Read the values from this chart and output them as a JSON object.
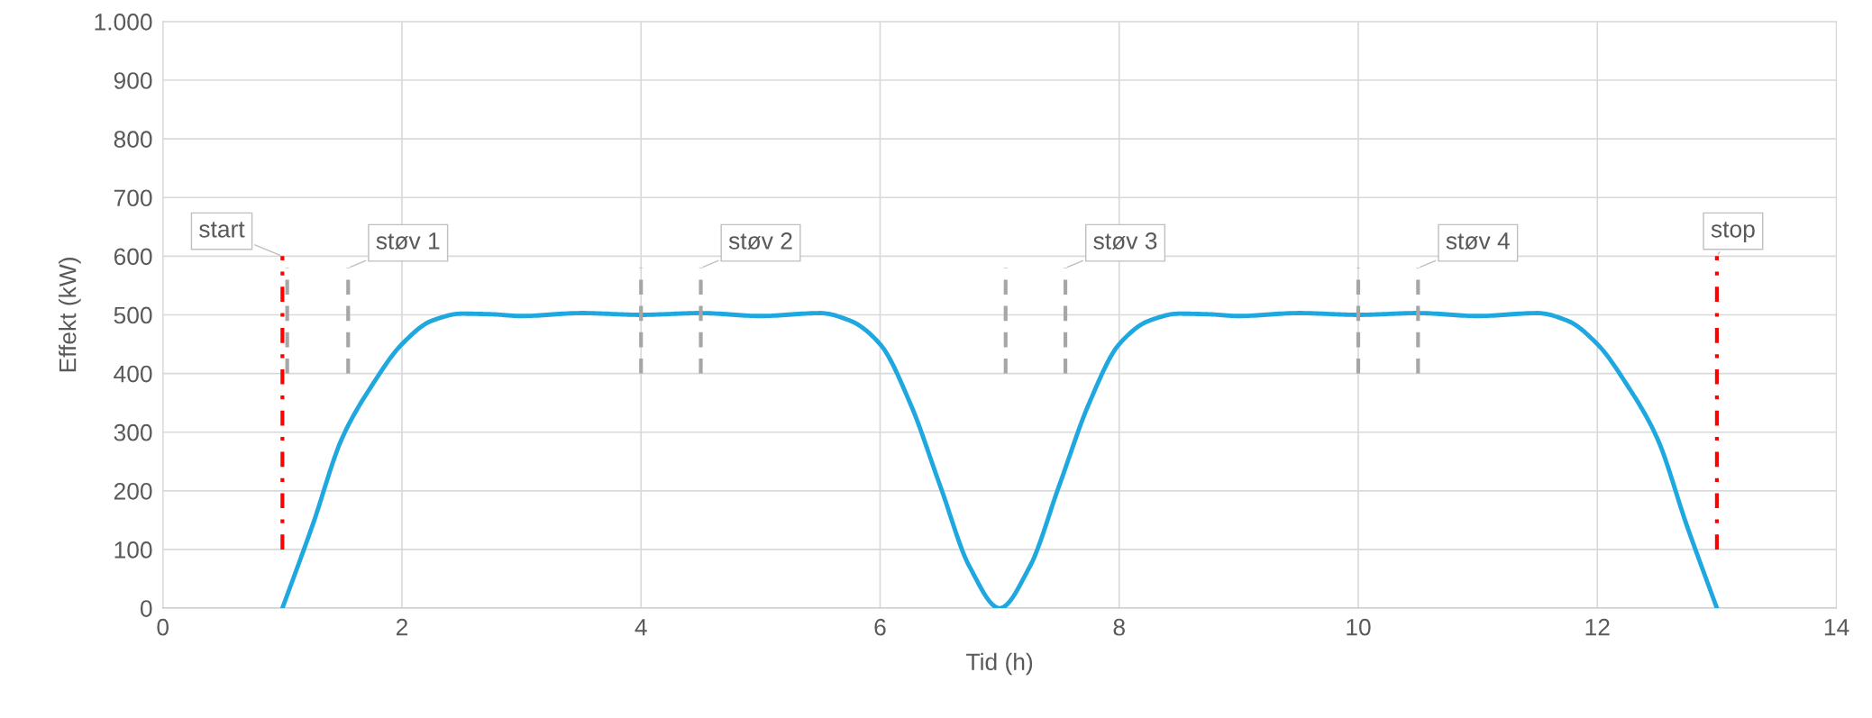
{
  "chart_data": {
    "type": "line",
    "xlabel": "Tid (h)",
    "ylabel": "Effekt (kW)",
    "xlim": [
      0,
      14
    ],
    "xticks": [
      0,
      2,
      4,
      6,
      8,
      10,
      12,
      14
    ],
    "ylim": [
      0,
      1000
    ],
    "yticks": [
      0,
      100,
      200,
      300,
      400,
      500,
      600,
      700,
      800,
      900,
      {
        "value": 1000,
        "label": "1.000"
      }
    ],
    "grid": true,
    "legend": false,
    "marker": "none",
    "series": [
      {
        "color": "#1fa8e0",
        "line_style": "solid",
        "x": [
          1,
          1.25,
          1.5,
          1.75,
          2,
          2.25,
          2.5,
          2.75,
          3,
          3.5,
          4,
          4.5,
          5,
          5.5,
          5.75,
          6,
          6.25,
          6.5,
          6.75,
          7,
          7.25,
          7.5,
          7.75,
          8,
          8.25,
          8.5,
          8.75,
          9,
          9.5,
          10,
          10.5,
          11,
          11.5,
          11.75,
          12,
          12.25,
          12.5,
          12.75,
          13
        ],
        "values": [
          0,
          140,
          290,
          380,
          450,
          490,
          502,
          501,
          498,
          503,
          500,
          503,
          498,
          503,
          490,
          450,
          350,
          210,
          70,
          0,
          70,
          210,
          350,
          450,
          490,
          502,
          501,
          498,
          503,
          500,
          503,
          498,
          503,
          490,
          450,
          380,
          290,
          140,
          0
        ]
      },
      {
        "color": "#ff0000",
        "line_style": "dashdot",
        "x": [
          1,
          1
        ],
        "values": [
          100,
          600
        ]
      },
      {
        "color": "#ff0000",
        "line_style": "dashdot",
        "x": [
          13,
          13
        ],
        "values": [
          100,
          600
        ]
      },
      {
        "color": "#a6a6a6",
        "line_style": "dashed",
        "x": [
          1.04,
          1.04
        ],
        "values": [
          400,
          580
        ]
      },
      {
        "color": "#a6a6a6",
        "line_style": "dashed",
        "x": [
          1.55,
          1.55
        ],
        "values": [
          400,
          580
        ]
      },
      {
        "color": "#a6a6a6",
        "line_style": "dashed",
        "x": [
          4,
          4
        ],
        "values": [
          400,
          580
        ]
      },
      {
        "color": "#a6a6a6",
        "line_style": "dashed",
        "x": [
          4.5,
          4.5
        ],
        "values": [
          400,
          580
        ]
      },
      {
        "color": "#a6a6a6",
        "line_style": "dashed",
        "x": [
          7.05,
          7.05
        ],
        "values": [
          400,
          580
        ]
      },
      {
        "color": "#a6a6a6",
        "line_style": "dashed",
        "x": [
          7.55,
          7.55
        ],
        "values": [
          400,
          580
        ]
      },
      {
        "color": "#a6a6a6",
        "line_style": "dashed",
        "x": [
          10,
          10
        ],
        "values": [
          400,
          580
        ]
      },
      {
        "color": "#a6a6a6",
        "line_style": "dashed",
        "x": [
          10.5,
          10.5
        ],
        "values": [
          400,
          580
        ]
      }
    ],
    "annotations": [
      {
        "text": "start",
        "x": 1,
        "y": 600
      },
      {
        "text": "støv 1",
        "x": 1.55,
        "y": 580
      },
      {
        "text": "støv 2",
        "x": 4.5,
        "y": 580
      },
      {
        "text": "støv 3",
        "x": 7.55,
        "y": 580
      },
      {
        "text": "støv 4",
        "x": 10.5,
        "y": 580
      },
      {
        "text": "stop",
        "x": 13,
        "y": 600
      }
    ]
  }
}
